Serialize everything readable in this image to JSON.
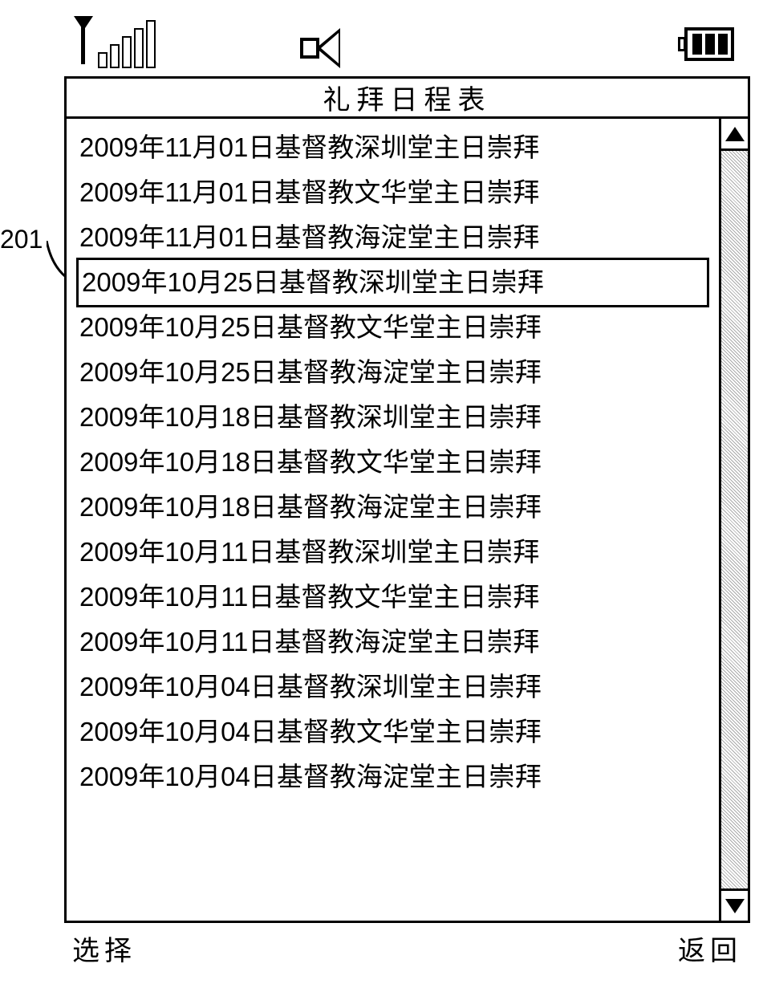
{
  "callout": {
    "label": "201"
  },
  "header": {
    "title": "礼拜日程表"
  },
  "list": {
    "selectedIndex": 3,
    "items": [
      "2009年11月01日基督教深圳堂主日崇拜",
      "2009年11月01日基督教文华堂主日崇拜",
      "2009年11月01日基督教海淀堂主日崇拜",
      "2009年10月25日基督教深圳堂主日崇拜",
      "2009年10月25日基督教文华堂主日崇拜",
      "2009年10月25日基督教海淀堂主日崇拜",
      "2009年10月18日基督教深圳堂主日崇拜",
      "2009年10月18日基督教文华堂主日崇拜",
      "2009年10月18日基督教海淀堂主日崇拜",
      "2009年10月11日基督教深圳堂主日崇拜",
      "2009年10月11日基督教文华堂主日崇拜",
      "2009年10月11日基督教海淀堂主日崇拜",
      "2009年10月04日基督教深圳堂主日崇拜",
      "2009年10月04日基督教文华堂主日崇拜",
      "2009年10月04日基督教海淀堂主日崇拜"
    ]
  },
  "softkeys": {
    "left": "选择",
    "right": "返回"
  },
  "styling": {
    "font_size_list": 33,
    "font_size_title": 34,
    "line_height": 56,
    "border_color": "#000000",
    "background_color": "#ffffff",
    "selection_border_width": 3
  }
}
